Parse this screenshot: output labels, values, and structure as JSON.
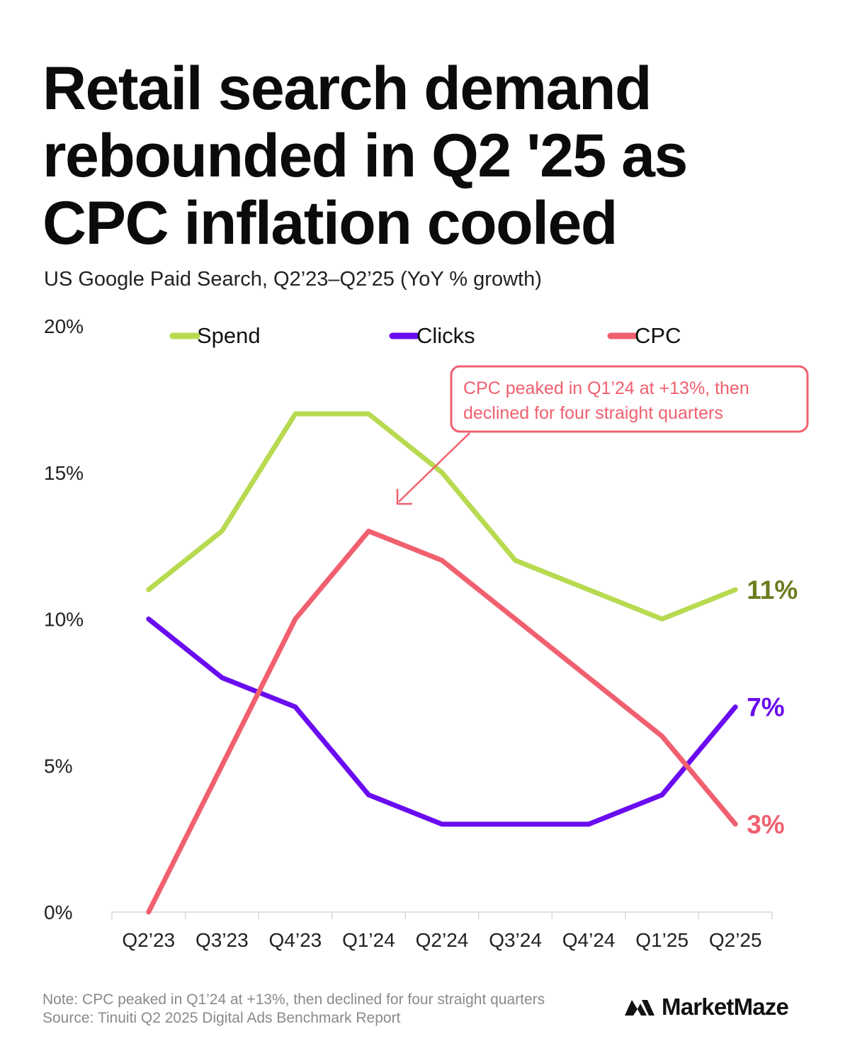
{
  "header": {
    "title": "Retail search demand rebounded in Q2 '25 as CPC inflation cooled",
    "subtitle": "US Google Paid Search, Q2’23–Q2’25 (YoY % growth)"
  },
  "chart_data": {
    "type": "line",
    "categories": [
      "Q2’23",
      "Q3’23",
      "Q4’23",
      "Q1’24",
      "Q2’24",
      "Q3’24",
      "Q4’24",
      "Q1’25",
      "Q2’25"
    ],
    "ylim": [
      0,
      20
    ],
    "yticks": [
      0,
      5,
      10,
      15,
      20
    ],
    "ytick_labels": [
      "0%",
      "5%",
      "10%",
      "15%",
      "20%"
    ],
    "legend_position": "top",
    "grid": false,
    "series": [
      {
        "name": "Spend",
        "color": "#b8da50",
        "label_color": "#6b7d1f",
        "values": [
          11,
          13,
          17,
          17,
          15,
          12,
          11,
          10,
          11
        ],
        "end_label": "11%"
      },
      {
        "name": "Clicks",
        "color": "#6a0cf0",
        "label_color": "#6a0cf0",
        "values": [
          10,
          8,
          7,
          4,
          3,
          3,
          3,
          4,
          7
        ],
        "end_label": "7%"
      },
      {
        "name": "CPC",
        "color": "#f0606f",
        "label_color": "#f0606f",
        "values": [
          0,
          5,
          10,
          13,
          12,
          10,
          8,
          6,
          3
        ],
        "end_label": "3%"
      }
    ],
    "annotation": {
      "text_line1": "CPC peaked in Q1’24 at +13%, then",
      "text_line2": "declined for four straight quarters",
      "color": "#f0606f"
    }
  },
  "footer": {
    "note": "Note: CPC peaked in Q1’24 at +13%, then declined for four straight quarters",
    "source": "Source: Tinuiti Q2 2025 Digital Ads Benchmark Report"
  },
  "brand": {
    "name": "MarketMaze",
    "icon": "marketmaze-logo-icon"
  }
}
